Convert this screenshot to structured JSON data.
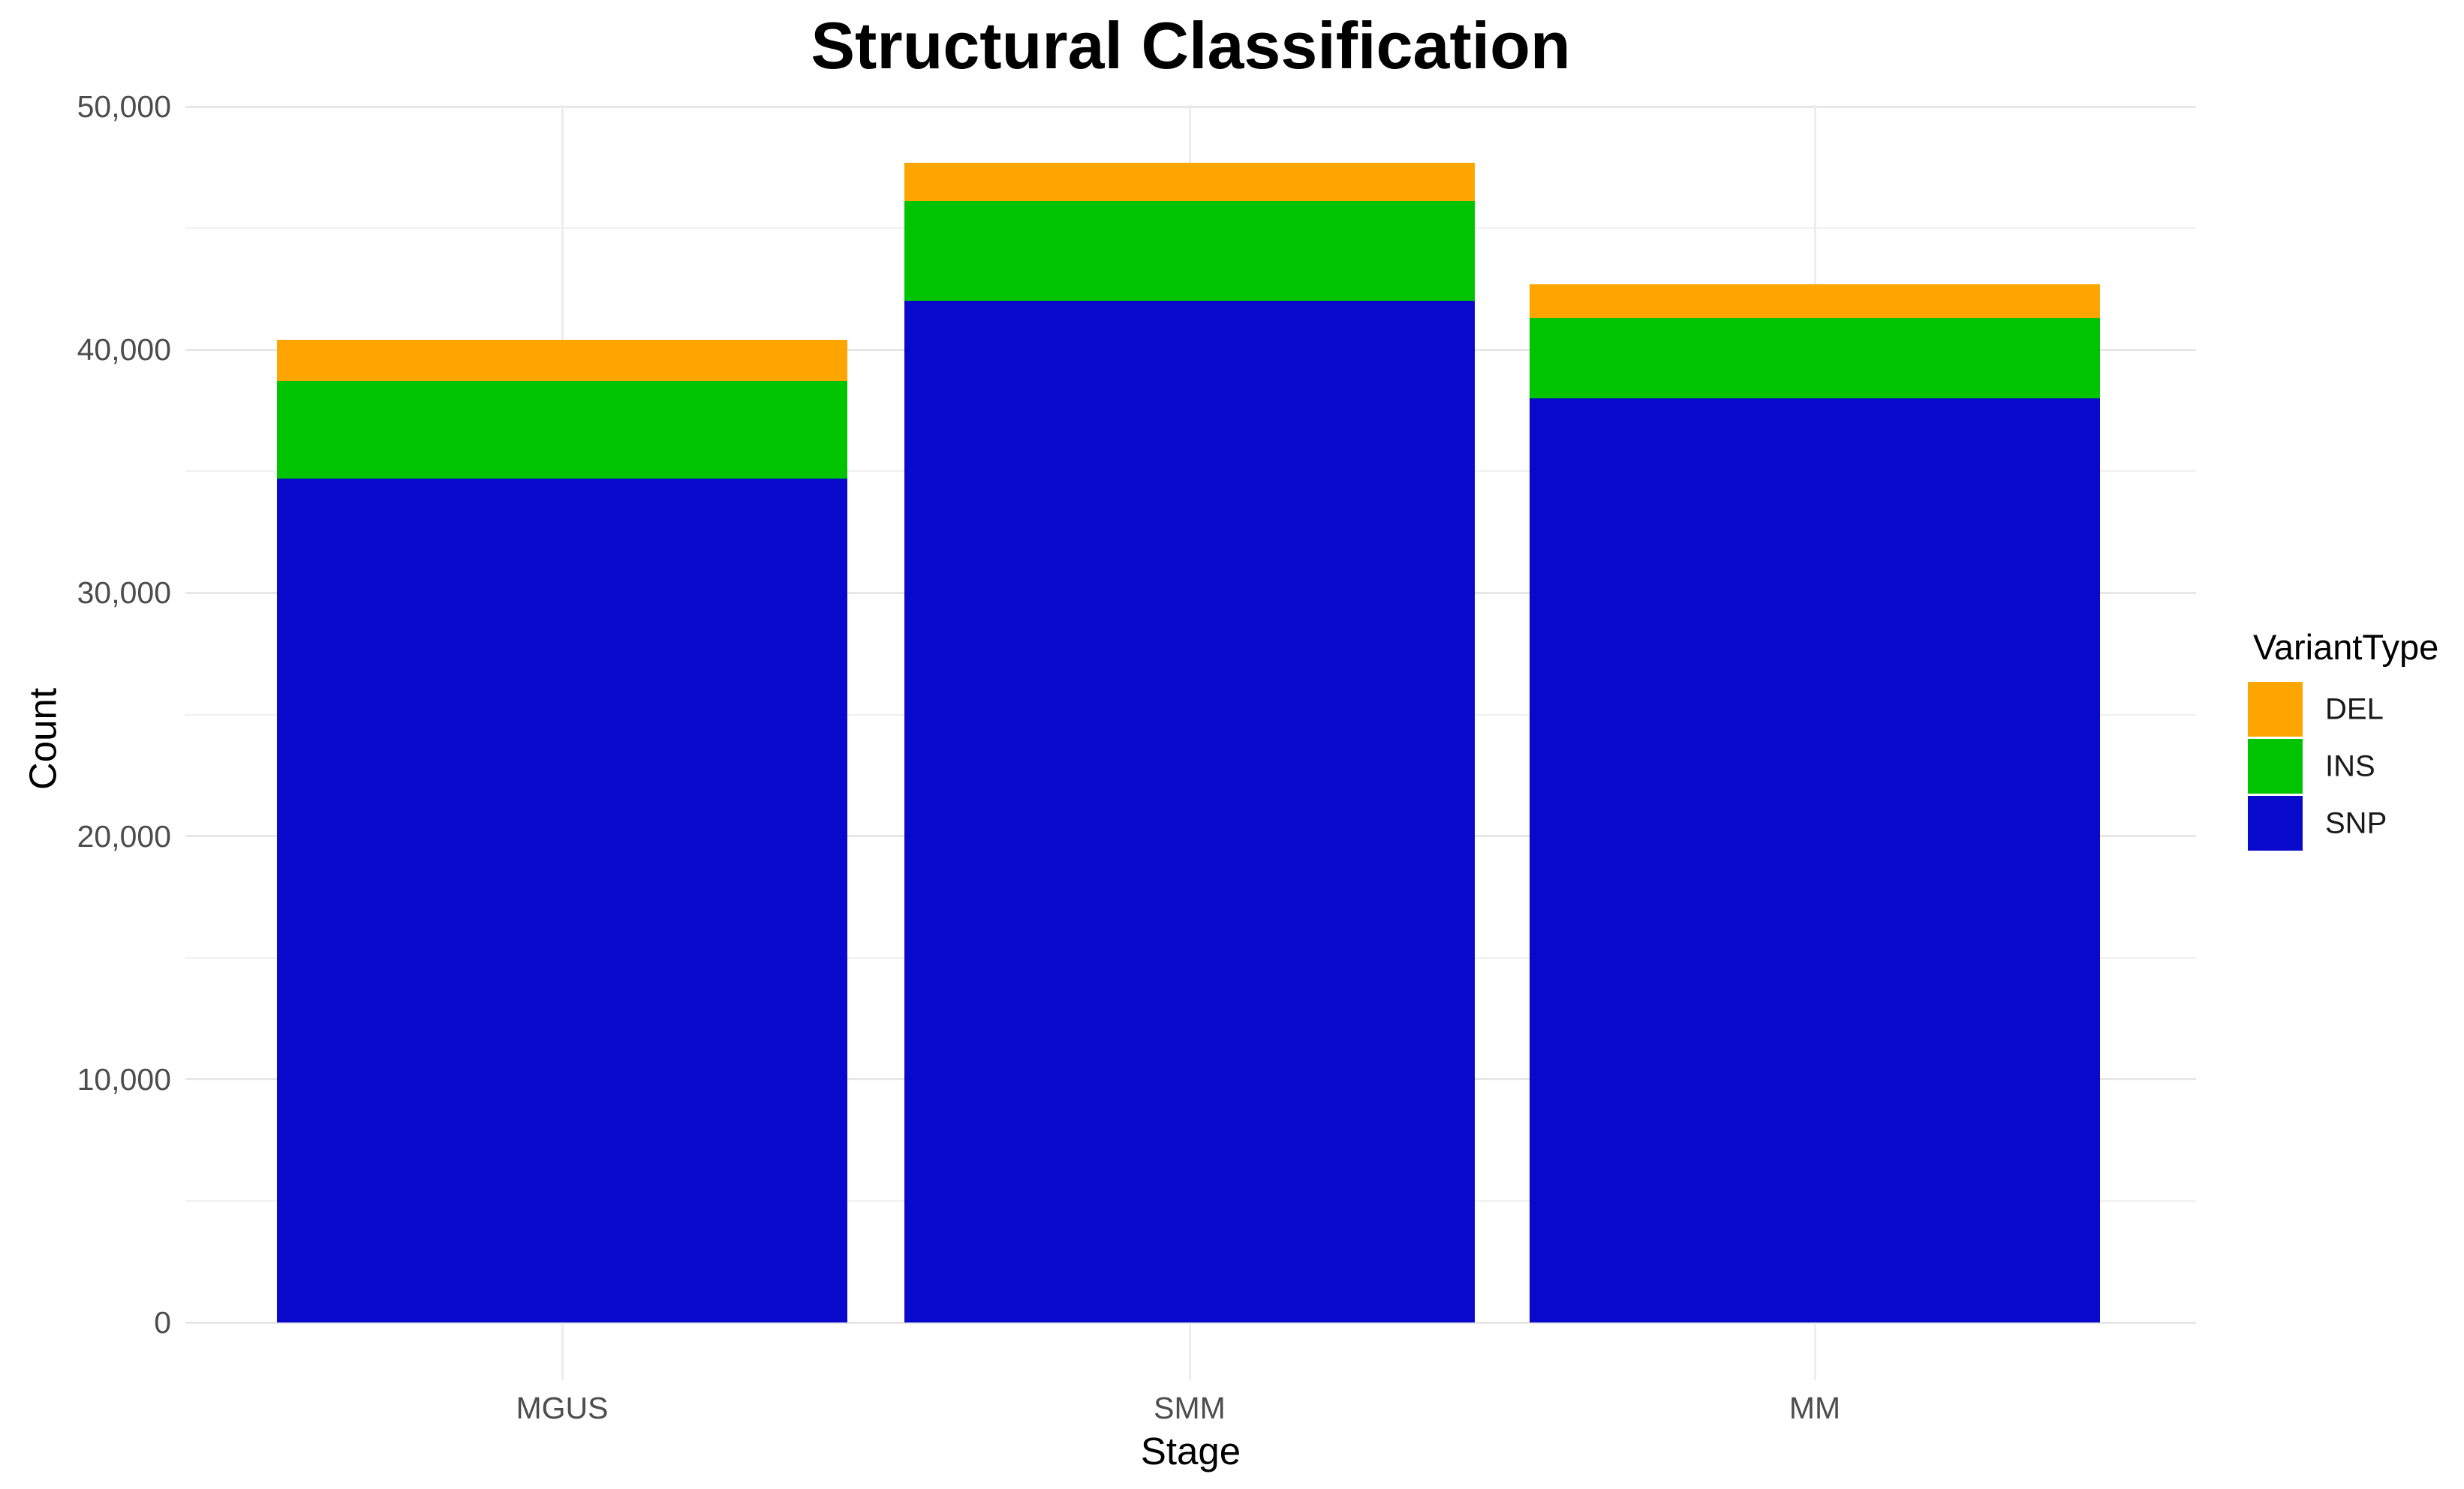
{
  "chart_title": "Structural Classification",
  "chart_data": {
    "type": "bar",
    "stacked": true,
    "title": "Structural Classification",
    "xlabel": "Stage",
    "ylabel": "Count",
    "categories": [
      "MGUS",
      "SMM",
      "MM"
    ],
    "series": [
      {
        "name": "SNP",
        "color": "#0909cc",
        "values": [
          34700,
          42000,
          38000
        ]
      },
      {
        "name": "INS",
        "color": "#00c400",
        "values": [
          4000,
          4100,
          3300
        ]
      },
      {
        "name": "DEL",
        "color": "#ffa500",
        "values": [
          1700,
          1600,
          1400
        ]
      }
    ],
    "stack_totals": [
      40400,
      47700,
      42700
    ],
    "ylim": [
      0,
      50000
    ],
    "yticks": [
      0,
      10000,
      20000,
      30000,
      40000,
      50000
    ],
    "ytick_labels": [
      "0",
      "10,000",
      "20,000",
      "30,000",
      "40,000",
      "50,000"
    ],
    "minor_yticks": [
      5000,
      15000,
      25000,
      35000,
      45000
    ],
    "grid": "horizontal major+minor gridlines, vertical gridline at each category; white background (minimal theme)",
    "legend": {
      "title": "VariantType",
      "position": "right",
      "entries": [
        {
          "label": "DEL",
          "color": "#ffa500"
        },
        {
          "label": "INS",
          "color": "#00c400"
        },
        {
          "label": "SNP",
          "color": "#0909cc"
        }
      ]
    }
  }
}
